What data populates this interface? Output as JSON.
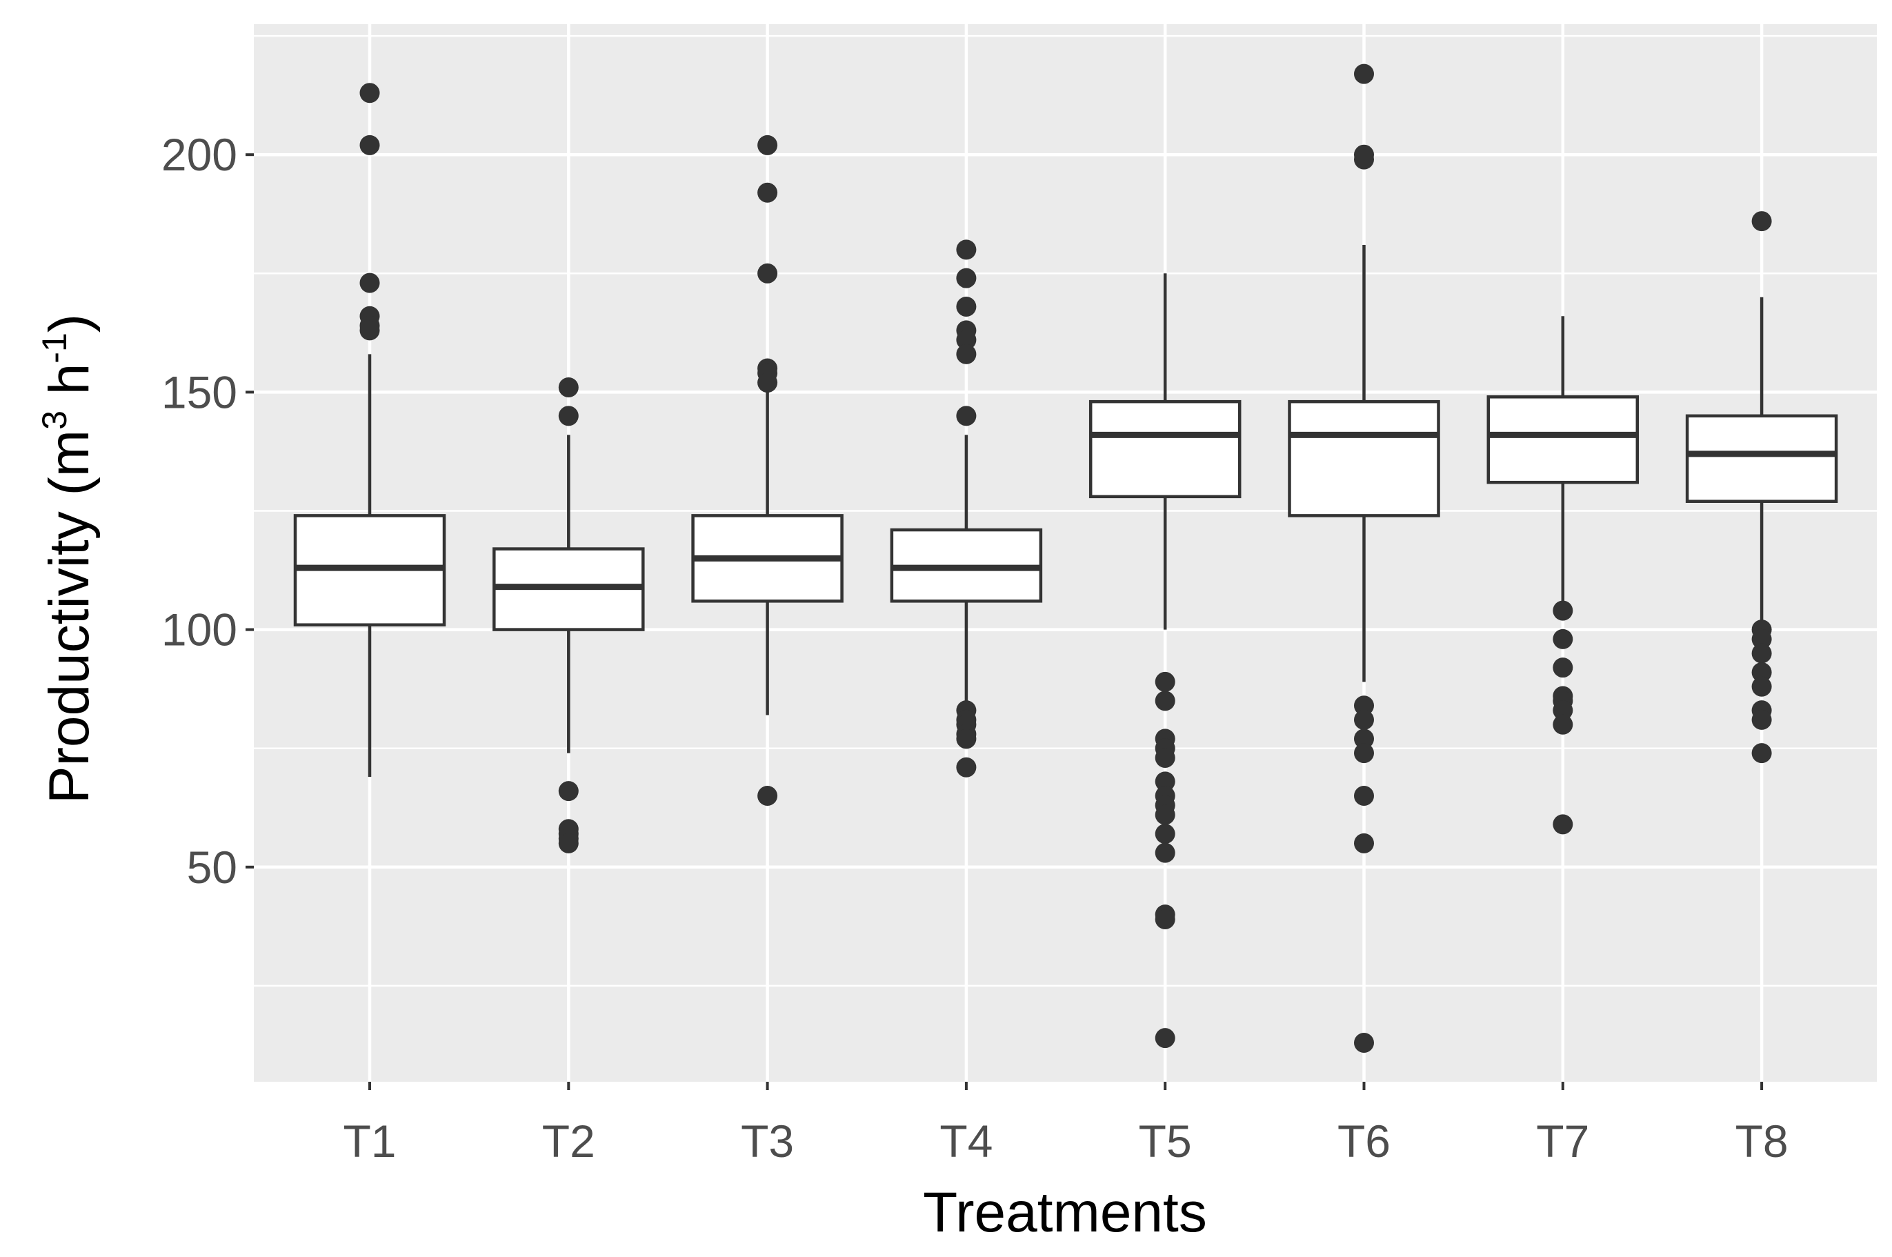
{
  "chart_data": {
    "type": "boxplot",
    "xlabel": "Treatments",
    "ylabel": {
      "text": "Productivity (m",
      "sup1": "3",
      "mid": " h",
      "sup2": "-1",
      "end": ")"
    },
    "ylim": [
      5,
      225
    ],
    "yticks": [
      50,
      100,
      150,
      200
    ],
    "ygrid_minor": [
      25,
      75,
      125,
      175,
      225
    ],
    "grid": true,
    "panel_background": "#ebebeb",
    "grid_color": "#ffffff",
    "box_color": "#333333",
    "categories": [
      "T1",
      "T2",
      "T3",
      "T4",
      "T5",
      "T6",
      "T7",
      "T8"
    ],
    "boxes": [
      {
        "name": "T1",
        "q1": 101,
        "median": 113,
        "q3": 124,
        "whisker_low": 69,
        "whisker_high": 158,
        "outliers": [
          213,
          202,
          173,
          166,
          164,
          163
        ]
      },
      {
        "name": "T2",
        "q1": 100,
        "median": 109,
        "q3": 117,
        "whisker_low": 74,
        "whisker_high": 141,
        "outliers": [
          151,
          145,
          66,
          58,
          57,
          56,
          55
        ]
      },
      {
        "name": "T3",
        "q1": 106,
        "median": 115,
        "q3": 124,
        "whisker_low": 82,
        "whisker_high": 150,
        "outliers": [
          202,
          192,
          175,
          155,
          154,
          152,
          65
        ]
      },
      {
        "name": "T4",
        "q1": 106,
        "median": 113,
        "q3": 121,
        "whisker_low": 84,
        "whisker_high": 141,
        "outliers": [
          180,
          174,
          168,
          163,
          161,
          158,
          145,
          83,
          81,
          80,
          78,
          77,
          71
        ]
      },
      {
        "name": "T5",
        "q1": 128,
        "median": 141,
        "q3": 148,
        "whisker_low": 100,
        "whisker_high": 175,
        "outliers": [
          89,
          85,
          77,
          75,
          73,
          68,
          65,
          63,
          61,
          57,
          53,
          40,
          39,
          14
        ]
      },
      {
        "name": "T6",
        "q1": 124,
        "median": 141,
        "q3": 148,
        "whisker_low": 89,
        "whisker_high": 181,
        "outliers": [
          217,
          200,
          199,
          84,
          81,
          77,
          74,
          65,
          55,
          13
        ]
      },
      {
        "name": "T7",
        "q1": 131,
        "median": 141,
        "q3": 149,
        "whisker_low": 106,
        "whisker_high": 166,
        "outliers": [
          104,
          98,
          92,
          86,
          85,
          83,
          80,
          59
        ]
      },
      {
        "name": "T8",
        "q1": 127,
        "median": 137,
        "q3": 145,
        "whisker_low": 101,
        "whisker_high": 170,
        "outliers": [
          186,
          100,
          98,
          95,
          91,
          88,
          83,
          81,
          74
        ]
      }
    ]
  }
}
